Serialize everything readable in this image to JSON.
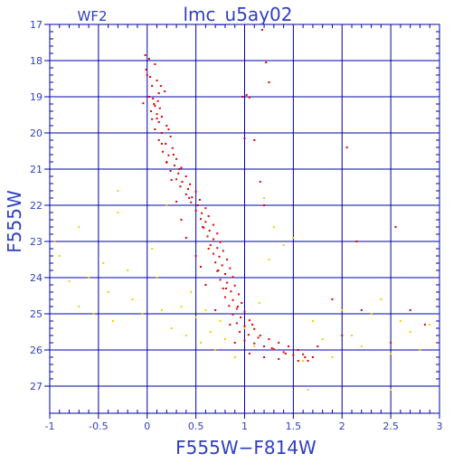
{
  "chart_data": {
    "type": "scatter",
    "title": "lmc_u5ay02",
    "subtitle": "WF2",
    "xlabel": "F555W−F814W",
    "ylabel": "F555W",
    "xlim": [
      -1,
      3
    ],
    "ylim": [
      27.75,
      17
    ],
    "y_inverted": true,
    "grid": true,
    "x_ticks": [
      -1,
      -0.5,
      0,
      0.5,
      1,
      1.5,
      2,
      2.5,
      3
    ],
    "x_tick_labels": [
      "-1",
      "-0.5",
      "0",
      "0.5",
      "1",
      "1.5",
      "2",
      "2.5",
      "3"
    ],
    "y_ticks": [
      17,
      18,
      19,
      20,
      21,
      22,
      23,
      24,
      25,
      26,
      27
    ],
    "y_tick_labels": [
      "17",
      "18",
      "19",
      "20",
      "21",
      "22",
      "23",
      "24",
      "25",
      "26",
      "27"
    ],
    "colors": {
      "axis": "#0000a8",
      "text": "#2f3fc0",
      "series_red": "#e00000",
      "series_yellow": "#f3d000",
      "background": "#ffffff"
    },
    "series": [
      {
        "color": "#e00000",
        "points": [
          [
            1.18,
            17.15
          ],
          [
            -0.02,
            17.85
          ],
          [
            0.02,
            17.95
          ],
          [
            0.08,
            18.1
          ],
          [
            -0.01,
            18.25
          ],
          [
            0.03,
            18.45
          ],
          [
            0.1,
            18.55
          ],
          [
            0.14,
            18.7
          ],
          [
            0.18,
            18.85
          ],
          [
            0.02,
            19.0
          ],
          [
            0.06,
            19.05
          ],
          [
            0.11,
            19.12
          ],
          [
            -0.04,
            19.18
          ],
          [
            0.08,
            19.25
          ],
          [
            0.13,
            19.32
          ],
          [
            0.04,
            19.4
          ],
          [
            0.1,
            19.48
          ],
          [
            0.15,
            19.55
          ],
          [
            0.05,
            19.62
          ],
          [
            0.12,
            19.7
          ],
          [
            0.2,
            19.8
          ],
          [
            0.08,
            19.9
          ],
          [
            0.15,
            20.0
          ],
          [
            0.24,
            20.1
          ],
          [
            0.12,
            20.2
          ],
          [
            0.19,
            20.3
          ],
          [
            0.26,
            20.42
          ],
          [
            0.16,
            20.52
          ],
          [
            0.22,
            20.62
          ],
          [
            0.3,
            20.72
          ],
          [
            0.2,
            20.82
          ],
          [
            0.28,
            20.9
          ],
          [
            0.35,
            20.96
          ],
          [
            0.24,
            21.05
          ],
          [
            0.32,
            21.12
          ],
          [
            0.4,
            21.2
          ],
          [
            0.3,
            21.28
          ],
          [
            0.36,
            21.35
          ],
          [
            0.44,
            21.42
          ],
          [
            0.34,
            21.48
          ],
          [
            0.42,
            21.55
          ],
          [
            0.5,
            21.62
          ],
          [
            0.4,
            21.7
          ],
          [
            0.46,
            21.78
          ],
          [
            0.54,
            21.85
          ],
          [
            0.45,
            21.92
          ],
          [
            0.52,
            22.0
          ],
          [
            0.6,
            22.08
          ],
          [
            0.5,
            22.15
          ],
          [
            0.56,
            22.22
          ],
          [
            0.63,
            22.3
          ],
          [
            0.55,
            22.38
          ],
          [
            0.6,
            22.46
          ],
          [
            0.68,
            22.54
          ],
          [
            0.58,
            22.62
          ],
          [
            0.64,
            22.7
          ],
          [
            0.72,
            22.78
          ],
          [
            0.62,
            22.86
          ],
          [
            0.68,
            22.94
          ],
          [
            0.75,
            23.02
          ],
          [
            0.65,
            23.1
          ],
          [
            0.72,
            23.18
          ],
          [
            0.78,
            23.26
          ],
          [
            0.68,
            23.34
          ],
          [
            0.74,
            23.42
          ],
          [
            0.82,
            23.5
          ],
          [
            0.7,
            23.58
          ],
          [
            0.77,
            23.66
          ],
          [
            0.85,
            23.74
          ],
          [
            0.72,
            23.82
          ],
          [
            0.8,
            23.9
          ],
          [
            0.88,
            23.98
          ],
          [
            0.75,
            24.06
          ],
          [
            0.82,
            24.14
          ],
          [
            0.9,
            24.22
          ],
          [
            0.78,
            24.3
          ],
          [
            0.86,
            24.38
          ],
          [
            0.94,
            24.46
          ],
          [
            0.8,
            24.54
          ],
          [
            0.88,
            24.62
          ],
          [
            0.97,
            24.7
          ],
          [
            0.84,
            24.78
          ],
          [
            0.92,
            24.86
          ],
          [
            1.0,
            24.94
          ],
          [
            0.88,
            25.02
          ],
          [
            0.96,
            25.1
          ],
          [
            1.05,
            25.18
          ],
          [
            0.92,
            25.26
          ],
          [
            1.0,
            25.34
          ],
          [
            1.1,
            25.42
          ],
          [
            0.95,
            25.5
          ],
          [
            1.04,
            25.58
          ],
          [
            1.14,
            25.66
          ],
          [
            1.0,
            25.74
          ],
          [
            1.1,
            25.82
          ],
          [
            1.2,
            25.9
          ],
          [
            1.3,
            25.98
          ],
          [
            1.4,
            26.06
          ],
          [
            1.5,
            26.14
          ],
          [
            1.25,
            25.7
          ],
          [
            1.35,
            25.8
          ],
          [
            1.45,
            25.9
          ],
          [
            1.55,
            26.0
          ],
          [
            1.6,
            26.12
          ],
          [
            1.7,
            26.2
          ],
          [
            1.65,
            26.3
          ],
          [
            0.98,
            19.0
          ],
          [
            1.02,
            18.95
          ],
          [
            1.05,
            19.02
          ],
          [
            1.0,
            20.15
          ],
          [
            1.1,
            20.2
          ],
          [
            1.16,
            21.35
          ],
          [
            1.2,
            22.0
          ],
          [
            1.22,
            18.05
          ],
          [
            1.25,
            18.6
          ],
          [
            2.05,
            20.4
          ],
          [
            2.55,
            22.6
          ],
          [
            2.15,
            23.0
          ],
          [
            1.9,
            24.6
          ],
          [
            2.2,
            24.9
          ],
          [
            2.7,
            24.9
          ],
          [
            2.85,
            25.3
          ],
          [
            2.0,
            25.6
          ],
          [
            2.5,
            25.8
          ],
          [
            1.55,
            26.3
          ],
          [
            1.62,
            26.2
          ],
          [
            1.75,
            25.9
          ],
          [
            0.55,
            23.7
          ],
          [
            0.6,
            24.2
          ],
          [
            0.7,
            24.9
          ],
          [
            0.85,
            25.3
          ],
          [
            0.9,
            25.8
          ],
          [
            1.05,
            26.1
          ],
          [
            1.2,
            26.2
          ],
          [
            1.35,
            26.25
          ],
          [
            0.4,
            22.9
          ],
          [
            0.5,
            23.4
          ],
          [
            0.35,
            22.4
          ],
          [
            0.3,
            21.9
          ],
          [
            0.25,
            21.3
          ],
          [
            0.2,
            20.8
          ],
          [
            0.15,
            20.3
          ],
          [
            0.1,
            19.6
          ],
          [
            0.07,
            19.2
          ],
          [
            0.0,
            18.4
          ],
          [
            0.05,
            18.7
          ],
          [
            0.12,
            18.9
          ],
          [
            0.22,
            19.9
          ],
          [
            0.27,
            20.6
          ],
          [
            0.33,
            21.0
          ],
          [
            0.43,
            21.8
          ],
          [
            0.57,
            22.6
          ],
          [
            0.63,
            23.2
          ],
          [
            0.73,
            23.8
          ],
          [
            0.81,
            24.3
          ],
          [
            0.93,
            24.8
          ],
          [
            1.08,
            25.3
          ],
          [
            1.16,
            25.6
          ],
          [
            1.28,
            25.95
          ],
          [
            1.42,
            26.1
          ]
        ]
      },
      {
        "color": "#f3d000",
        "points": [
          [
            -0.95,
            23.0
          ],
          [
            -0.9,
            23.4
          ],
          [
            -0.8,
            24.1
          ],
          [
            -0.7,
            24.8
          ],
          [
            -0.6,
            24.0
          ],
          [
            -0.55,
            25.0
          ],
          [
            -0.45,
            23.6
          ],
          [
            -0.4,
            24.4
          ],
          [
            -0.35,
            25.2
          ],
          [
            -0.3,
            22.2
          ],
          [
            -0.2,
            23.8
          ],
          [
            -0.15,
            24.6
          ],
          [
            -0.05,
            25.0
          ],
          [
            0.05,
            23.2
          ],
          [
            0.1,
            24.0
          ],
          [
            0.15,
            24.9
          ],
          [
            0.25,
            25.4
          ],
          [
            0.35,
            24.8
          ],
          [
            0.4,
            25.6
          ],
          [
            0.45,
            24.4
          ],
          [
            0.5,
            25.1
          ],
          [
            0.55,
            25.8
          ],
          [
            0.6,
            24.9
          ],
          [
            0.65,
            25.5
          ],
          [
            0.7,
            26.0
          ],
          [
            0.75,
            25.2
          ],
          [
            0.8,
            25.7
          ],
          [
            0.9,
            26.2
          ],
          [
            1.0,
            25.4
          ],
          [
            1.1,
            25.9
          ],
          [
            1.15,
            24.7
          ],
          [
            1.25,
            23.5
          ],
          [
            1.3,
            22.6
          ],
          [
            1.4,
            23.1
          ],
          [
            1.5,
            22.9
          ],
          [
            1.7,
            25.2
          ],
          [
            1.8,
            25.7
          ],
          [
            1.9,
            26.2
          ],
          [
            2.0,
            24.9
          ],
          [
            2.1,
            25.6
          ],
          [
            2.2,
            25.9
          ],
          [
            2.3,
            25.0
          ],
          [
            2.4,
            24.6
          ],
          [
            2.5,
            26.1
          ],
          [
            2.6,
            25.2
          ],
          [
            2.7,
            25.5
          ],
          [
            2.8,
            26.0
          ],
          [
            2.9,
            25.3
          ],
          [
            1.6,
            26.3
          ],
          [
            1.65,
            27.1
          ],
          [
            2.5,
            27.1
          ],
          [
            -0.3,
            21.6
          ],
          [
            -0.7,
            22.6
          ],
          [
            0.2,
            22.0
          ],
          [
            1.2,
            21.8
          ]
        ]
      }
    ]
  }
}
